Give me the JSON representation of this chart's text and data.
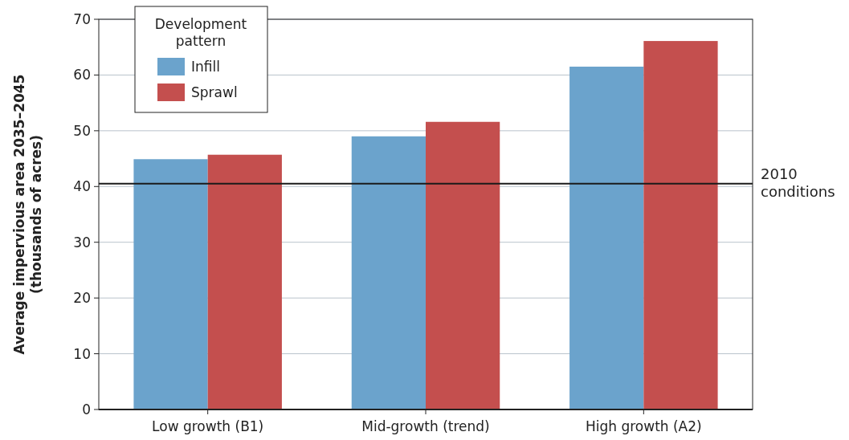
{
  "chart_data": {
    "type": "bar",
    "ylabel": "Average impervious area 2035–2045\n(thousands of acres)",
    "legend_title": "Development pattern",
    "categories": [
      "Low growth (B1)",
      "Mid-growth (trend)",
      "High growth (A2)"
    ],
    "series": [
      {
        "name": "Infill",
        "color": "#6ba3cc",
        "values": [
          44.9,
          49.0,
          61.5
        ]
      },
      {
        "name": "Sprawl",
        "color": "#c44f4e",
        "values": [
          45.7,
          51.6,
          66.1
        ]
      }
    ],
    "ylim": [
      0,
      70
    ],
    "yticks": [
      0,
      10,
      20,
      30,
      40,
      50,
      60,
      70
    ],
    "grid": "y",
    "legend": "top left",
    "ref_lines": [
      {
        "axis": "y",
        "value": 40.5,
        "label": "2010 conditions",
        "color": "#1a1a1a"
      }
    ]
  }
}
